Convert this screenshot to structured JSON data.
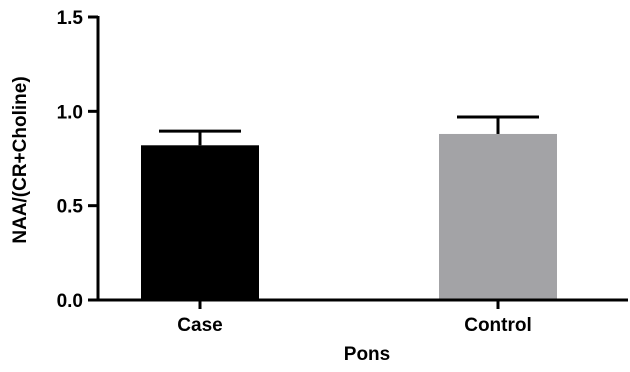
{
  "chart_data": {
    "type": "bar",
    "categories": [
      "Case",
      "Control"
    ],
    "values": [
      0.82,
      0.88
    ],
    "error": [
      0.075,
      0.09
    ],
    "colors": [
      "#000000",
      "#a3a3a6"
    ],
    "xlabel": "Pons",
    "ylabel": "NAA/(CR+Choline)",
    "ylim": [
      0.0,
      1.5
    ],
    "yticks": [
      0.0,
      0.5,
      1.0,
      1.5
    ],
    "ytick_labels": [
      "0.0",
      "0.5",
      "1.0",
      "1.5"
    ],
    "grid": false
  }
}
